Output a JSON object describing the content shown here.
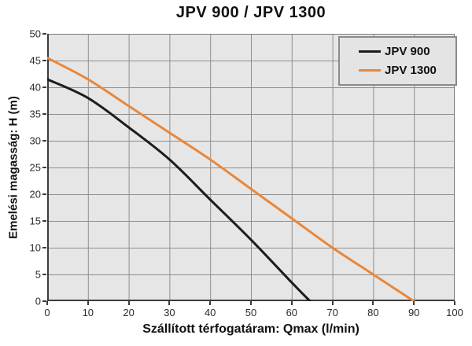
{
  "chart_data": {
    "type": "line",
    "title": "JPV 900 / JPV 1300",
    "xlabel": "Szállított térfogatáram: Qmax (l/min)",
    "ylabel": "Emelési magasság: H (m)",
    "xlim": [
      0,
      100
    ],
    "ylim": [
      0,
      50
    ],
    "x_ticks": [
      0,
      10,
      20,
      30,
      40,
      50,
      60,
      70,
      80,
      90,
      100
    ],
    "y_ticks": [
      50,
      45,
      40,
      35,
      30,
      25,
      20,
      15,
      10,
      5,
      0
    ],
    "grid": true,
    "legend_position": "top-right",
    "series": [
      {
        "name": "JPV 900",
        "color": "#1c1c1c",
        "points": [
          [
            0,
            41.5
          ],
          [
            10,
            38
          ],
          [
            20,
            32.5
          ],
          [
            30,
            26.5
          ],
          [
            40,
            19
          ],
          [
            50,
            11.5
          ],
          [
            60,
            3.5
          ],
          [
            64.5,
            0
          ]
        ]
      },
      {
        "name": "JPV 1300",
        "color": "#e8873b",
        "points": [
          [
            0,
            45.5
          ],
          [
            10,
            41.5
          ],
          [
            20,
            36.5
          ],
          [
            30,
            31.5
          ],
          [
            40,
            26.5
          ],
          [
            50,
            21
          ],
          [
            60,
            15.5
          ],
          [
            70,
            10
          ],
          [
            80,
            5
          ],
          [
            90,
            0
          ]
        ]
      }
    ],
    "colors": {
      "plot_background": "#e6e6e6",
      "grid_line": "#8f8f8f",
      "plot_border": "#7a7a7a",
      "axis_line": "#3c3c3c",
      "page_background": "#ffffff",
      "text": "#111111"
    }
  }
}
